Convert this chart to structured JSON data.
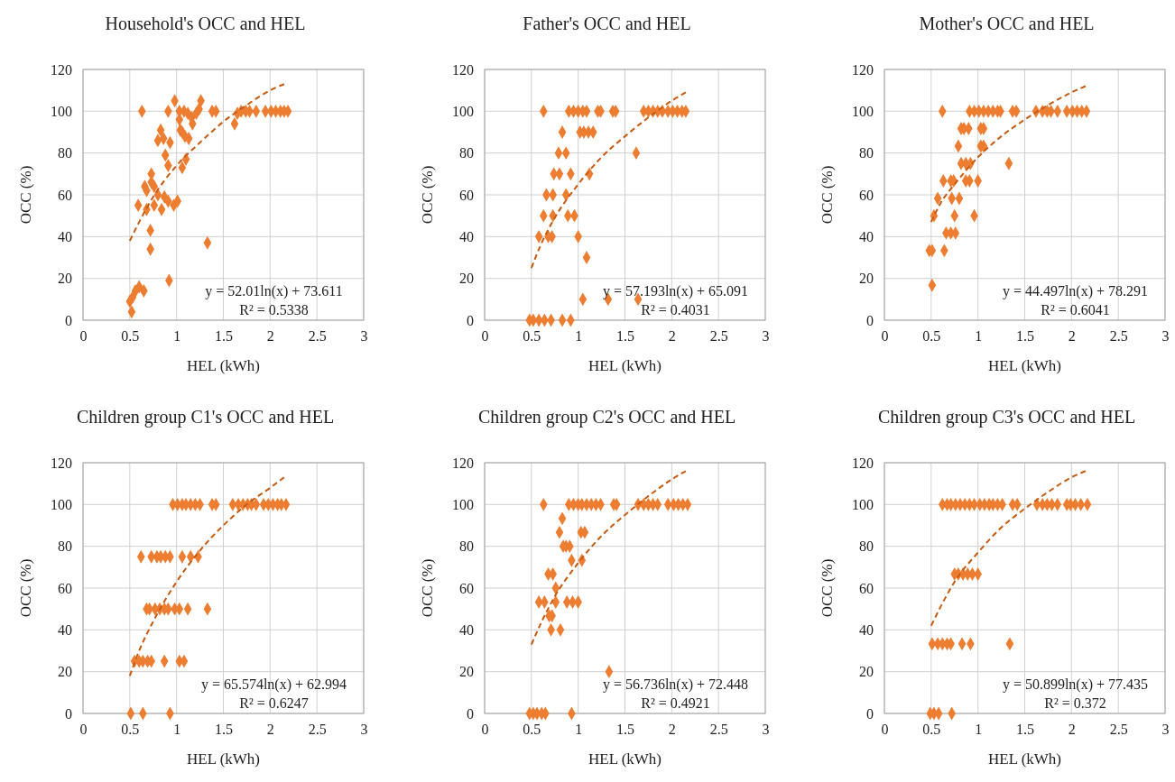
{
  "chart_data": [
    {
      "type": "scatter",
      "title": "Household's OCC and HEL",
      "xlabel": "HEL (kWh)",
      "ylabel": "OCC (%)",
      "xlim": [
        0,
        3
      ],
      "xticks": [
        0,
        0.5,
        1,
        1.5,
        2,
        2.5,
        3
      ],
      "ylim": [
        0,
        120
      ],
      "yticks": [
        0,
        20,
        40,
        60,
        80,
        100,
        120
      ],
      "grid": true,
      "marker": "diamond",
      "annotations": [
        "y = 52.01ln(x) + 73.611",
        "R² = 0.5338"
      ],
      "series": [
        {
          "color": "#ed7d31",
          "x": [
            0.63,
            0.91,
            0.98,
            1.03,
            1.08,
            1.12,
            1.16,
            1.21,
            1.24,
            1.26,
            1.38,
            1.42,
            1.03,
            1.17,
            1.04,
            1.06,
            1.09,
            1.13,
            0.83,
            0.8,
            0.86,
            0.93,
            0.88,
            0.91,
            1.1,
            1.06,
            0.73,
            0.73,
            0.66,
            0.68,
            0.76,
            0.8,
            0.87,
            0.91,
            0.97,
            1.01,
            0.59,
            0.68,
            0.76,
            0.84,
            0.72,
            0.72,
            1.33,
            0.92,
            0.5,
            0.53,
            0.56,
            0.6,
            0.65,
            0.52,
            1.62,
            1.65,
            1.69,
            1.74,
            1.78,
            1.85,
            1.95,
            2.01,
            2.06,
            2.11,
            2.15,
            2.19
          ],
          "values": [
            100,
            100,
            105,
            100,
            100,
            99,
            97,
            99,
            101,
            105,
            100,
            100,
            96,
            94,
            91,
            90,
            88,
            87,
            91,
            86,
            87,
            85,
            79,
            74,
            77,
            73,
            70,
            66,
            64,
            62,
            64,
            60,
            59,
            57,
            55,
            57,
            55,
            53,
            55,
            53,
            43,
            34,
            37,
            19,
            9,
            11,
            14,
            16,
            14,
            4,
            94,
            99,
            100,
            100,
            100,
            100,
            100,
            100,
            100,
            100,
            100,
            100
          ]
        },
        {
          "type": "line",
          "color": "#c55a11",
          "line_style": "dashed",
          "marker": "none",
          "x": [
            0.5,
            0.6,
            0.75,
            1,
            1.25,
            1.5,
            1.75,
            2,
            2.15
          ],
          "values": [
            38,
            47,
            59,
            74,
            85,
            95,
            103,
            110,
            113
          ]
        }
      ]
    },
    {
      "type": "scatter",
      "title": "Father's OCC and HEL",
      "xlabel": "HEL (kWh)",
      "ylabel": "OCC (%)",
      "xlim": [
        0,
        3
      ],
      "xticks": [
        0,
        0.5,
        1,
        1.5,
        2,
        2.5,
        3
      ],
      "ylim": [
        0,
        120
      ],
      "yticks": [
        0,
        20,
        40,
        60,
        80,
        100,
        120
      ],
      "grid": true,
      "marker": "diamond",
      "annotations": [
        "y = 57.193ln(x) + 65.091",
        "R² = 0.4031"
      ],
      "series": [
        {
          "color": "#ed7d31",
          "x": [
            0.63,
            0.9,
            0.95,
            1.0,
            1.05,
            1.09,
            1.21,
            1.24,
            1.37,
            1.4,
            1.7,
            1.75,
            1.8,
            1.85,
            1.9,
            1.96,
            2.01,
            2.06,
            2.11,
            2.15,
            0.83,
            1.02,
            1.06,
            1.11,
            1.16,
            0.79,
            0.87,
            1.62,
            0.74,
            0.8,
            0.92,
            1.12,
            0.66,
            0.73,
            0.87,
            0.63,
            0.73,
            0.89,
            0.96,
            0.58,
            0.68,
            0.72,
            1.0,
            1.09,
            1.05,
            1.32,
            1.64,
            0.48,
            0.52,
            0.58,
            0.64,
            0.71,
            0.83,
            0.92
          ],
          "values": [
            100,
            100,
            100,
            100,
            100,
            100,
            100,
            100,
            100,
            100,
            100,
            100,
            100,
            100,
            100,
            100,
            100,
            100,
            100,
            100,
            90,
            90,
            90,
            90,
            90,
            80,
            80,
            80,
            70,
            70,
            70,
            70,
            60,
            60,
            60,
            50,
            50,
            50,
            50,
            40,
            40,
            40,
            40,
            30,
            10,
            10,
            10,
            0,
            0,
            0,
            0,
            0,
            0,
            0
          ]
        },
        {
          "type": "line",
          "color": "#c55a11",
          "line_style": "dashed",
          "marker": "none",
          "x": [
            0.5,
            0.6,
            0.75,
            1,
            1.25,
            1.5,
            1.75,
            2,
            2.15
          ],
          "values": [
            25,
            36,
            49,
            65,
            78,
            88,
            97,
            105,
            109
          ]
        }
      ]
    },
    {
      "type": "scatter",
      "title": "Mother's OCC and HEL",
      "xlabel": "HEL (kWh)",
      "ylabel": "OCC (%)",
      "xlim": [
        0,
        3
      ],
      "xticks": [
        0,
        0.5,
        1,
        1.5,
        2,
        2.5,
        3
      ],
      "ylim": [
        0,
        120
      ],
      "yticks": [
        0,
        20,
        40,
        60,
        80,
        100,
        120
      ],
      "grid": true,
      "marker": "diamond",
      "annotations": [
        "y = 44.497ln(x) + 78.291",
        "R² = 0.6041"
      ],
      "series": [
        {
          "color": "#ed7d31",
          "x": [
            0.62,
            0.91,
            0.96,
            1.01,
            1.06,
            1.11,
            1.16,
            1.21,
            1.24,
            1.37,
            1.41,
            1.62,
            1.69,
            1.74,
            1.78,
            1.85,
            1.95,
            2.01,
            2.06,
            2.11,
            2.16,
            0.82,
            0.85,
            0.9,
            1.03,
            1.06,
            0.79,
            1.03,
            1.06,
            0.82,
            0.87,
            0.92,
            1.33,
            0.63,
            0.71,
            0.74,
            0.87,
            0.91,
            1.0,
            0.57,
            0.72,
            0.8,
            0.53,
            0.75,
            0.96,
            0.66,
            0.71,
            0.76,
            0.48,
            0.51,
            0.64,
            0.51
          ],
          "values": [
            100,
            100,
            100,
            100,
            100,
            100,
            100,
            100,
            100,
            100,
            100,
            100,
            100,
            100,
            100,
            100,
            100,
            100,
            100,
            100,
            100,
            91.7,
            91.7,
            91.7,
            91.7,
            91.7,
            83.3,
            83.3,
            83.3,
            75,
            75,
            75,
            75,
            66.7,
            66.7,
            66.7,
            66.7,
            66.7,
            66.7,
            58.3,
            58.3,
            58.3,
            50,
            50,
            50,
            41.7,
            41.7,
            41.7,
            33.3,
            33.3,
            33.3,
            16.7
          ]
        },
        {
          "type": "line",
          "color": "#c55a11",
          "line_style": "dashed",
          "marker": "none",
          "x": [
            0.5,
            0.6,
            0.75,
            1,
            1.25,
            1.5,
            1.75,
            2,
            2.15
          ],
          "values": [
            47,
            56,
            65,
            78,
            88,
            96,
            103,
            109,
            112
          ]
        }
      ]
    },
    {
      "type": "scatter",
      "title": "Children group C1's OCC and HEL",
      "xlabel": "HEL (kWh)",
      "ylabel": "OCC (%)",
      "xlim": [
        0,
        3
      ],
      "xticks": [
        0,
        0.5,
        1,
        1.5,
        2,
        2.5,
        3
      ],
      "ylim": [
        0,
        120
      ],
      "yticks": [
        0,
        20,
        40,
        60,
        80,
        100,
        120
      ],
      "grid": true,
      "marker": "diamond",
      "annotations": [
        "y = 65.574ln(x) + 62.994",
        "R² = 0.6247"
      ],
      "series": [
        {
          "color": "#ed7d31",
          "x": [
            0.96,
            1.01,
            1.06,
            1.1,
            1.15,
            1.2,
            1.25,
            1.38,
            1.42,
            1.6,
            1.66,
            1.71,
            1.76,
            1.8,
            1.85,
            1.93,
            1.98,
            2.03,
            2.08,
            2.12,
            2.17,
            0.62,
            0.73,
            0.79,
            0.83,
            0.88,
            0.93,
            1.06,
            1.15,
            1.23,
            0.68,
            0.71,
            0.77,
            0.82,
            0.87,
            0.91,
            0.98,
            1.03,
            1.12,
            1.33,
            0.55,
            0.6,
            0.64,
            0.69,
            0.73,
            0.87,
            1.03,
            1.08,
            0.51,
            0.64,
            0.93
          ],
          "values": [
            100,
            100,
            100,
            100,
            100,
            100,
            100,
            100,
            100,
            100,
            100,
            100,
            100,
            100,
            100,
            100,
            100,
            100,
            100,
            100,
            100,
            75,
            75,
            75,
            75,
            75,
            75,
            75,
            75,
            75,
            50,
            50,
            50,
            50,
            50,
            50,
            50,
            50,
            50,
            50,
            25,
            25,
            25,
            25,
            25,
            25,
            25,
            25,
            0,
            0,
            0
          ]
        },
        {
          "type": "line",
          "color": "#c55a11",
          "line_style": "dashed",
          "marker": "none",
          "x": [
            0.5,
            0.6,
            0.75,
            1,
            1.25,
            1.5,
            1.75,
            2,
            2.15
          ],
          "values": [
            18,
            30,
            44,
            63,
            78,
            90,
            100,
            108,
            113
          ]
        }
      ]
    },
    {
      "type": "scatter",
      "title": "Children group C2's OCC and HEL",
      "xlabel": "HEL (kWh)",
      "ylabel": "OCC (%)",
      "xlim": [
        0,
        3
      ],
      "xticks": [
        0,
        0.5,
        1,
        1.5,
        2,
        2.5,
        3
      ],
      "ylim": [
        0,
        120
      ],
      "yticks": [
        0,
        20,
        40,
        60,
        80,
        100,
        120
      ],
      "grid": true,
      "marker": "diamond",
      "annotations": [
        "y = 56.736ln(x) + 72.448",
        "R² = 0.4921"
      ],
      "series": [
        {
          "color": "#ed7d31",
          "x": [
            0.63,
            0.9,
            0.95,
            1.0,
            1.04,
            1.09,
            1.14,
            1.19,
            1.24,
            1.38,
            1.41,
            1.64,
            1.7,
            1.75,
            1.8,
            1.85,
            1.96,
            2.02,
            2.07,
            2.12,
            2.17,
            0.83,
            0.8,
            1.03,
            1.07,
            0.84,
            0.87,
            0.91,
            0.93,
            1.04,
            0.68,
            0.73,
            0.76,
            0.58,
            0.64,
            0.76,
            0.88,
            0.94,
            1.0,
            0.69,
            0.72,
            0.71,
            0.81,
            1.33,
            0.48,
            0.52,
            0.56,
            0.61,
            0.65,
            0.93
          ],
          "values": [
            100,
            100,
            100,
            100,
            100,
            100,
            100,
            100,
            100,
            100,
            100,
            100,
            100,
            100,
            100,
            100,
            100,
            100,
            100,
            100,
            100,
            93.3,
            86.7,
            86.7,
            86.7,
            80,
            80,
            80,
            73.3,
            73.3,
            66.7,
            66.7,
            60,
            53.3,
            53.3,
            53.3,
            53.3,
            53.3,
            53.3,
            46.7,
            46.7,
            40,
            40,
            20,
            0,
            0,
            0,
            0,
            0,
            0
          ]
        },
        {
          "type": "line",
          "color": "#c55a11",
          "line_style": "dashed",
          "marker": "none",
          "x": [
            0.5,
            0.6,
            0.75,
            1,
            1.25,
            1.5,
            1.75,
            2,
            2.15
          ],
          "values": [
            33,
            43,
            56,
            72,
            85,
            95,
            104,
            112,
            116
          ]
        }
      ]
    },
    {
      "type": "scatter",
      "title": "Children group C3's OCC and HEL",
      "xlabel": "HEL (kWh)",
      "ylabel": "OCC (%)",
      "xlim": [
        0,
        3
      ],
      "xticks": [
        0,
        0.5,
        1,
        1.5,
        2,
        2.5,
        3
      ],
      "ylim": [
        0,
        120
      ],
      "yticks": [
        0,
        20,
        40,
        60,
        80,
        100,
        120
      ],
      "grid": true,
      "marker": "diamond",
      "annotations": [
        "y = 50.899ln(x) + 77.435",
        "R² = 0.372"
      ],
      "series": [
        {
          "color": "#ed7d31",
          "x": [
            0.62,
            0.67,
            0.71,
            0.76,
            0.81,
            0.86,
            0.91,
            0.96,
            1.02,
            1.07,
            1.12,
            1.16,
            1.21,
            1.26,
            1.37,
            1.42,
            1.63,
            1.69,
            1.74,
            1.79,
            1.85,
            1.95,
            1.99,
            2.04,
            2.1,
            2.17,
            0.75,
            0.79,
            0.84,
            0.89,
            0.94,
            1.0,
            0.51,
            0.57,
            0.62,
            0.67,
            0.71,
            0.83,
            0.92,
            1.34,
            0.49,
            0.53,
            0.58,
            0.72
          ],
          "values": [
            100,
            100,
            100,
            100,
            100,
            100,
            100,
            100,
            100,
            100,
            100,
            100,
            100,
            100,
            100,
            100,
            100,
            100,
            100,
            100,
            100,
            100,
            100,
            100,
            100,
            100,
            66.7,
            66.7,
            66.7,
            66.7,
            66.7,
            66.7,
            33.3,
            33.3,
            33.3,
            33.3,
            33.3,
            33.3,
            33.3,
            33.3,
            0,
            0,
            0,
            0
          ]
        },
        {
          "type": "line",
          "color": "#c55a11",
          "line_style": "dashed",
          "marker": "none",
          "x": [
            0.5,
            0.6,
            0.75,
            1,
            1.25,
            1.5,
            1.75,
            2,
            2.15
          ],
          "values": [
            42,
            51,
            63,
            77,
            89,
            98,
            106,
            113,
            116
          ]
        }
      ]
    }
  ]
}
